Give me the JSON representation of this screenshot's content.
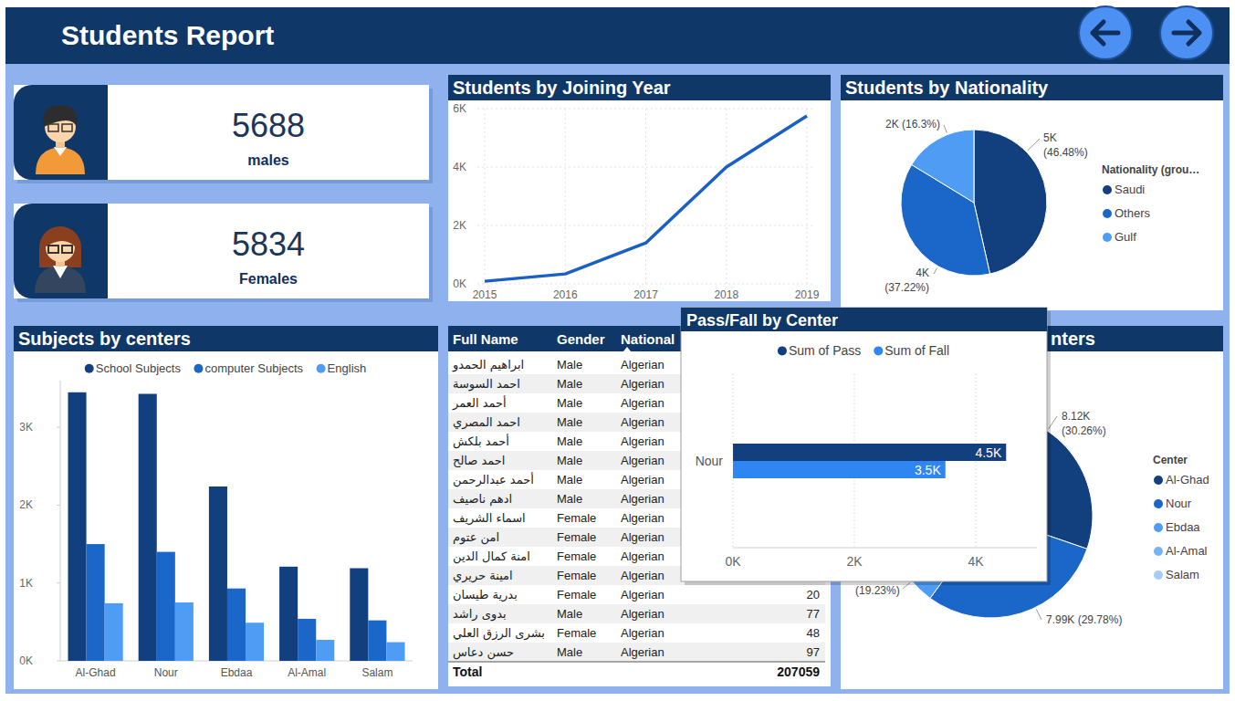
{
  "header": {
    "title": "Students Report"
  },
  "cards": [
    {
      "value": 5688,
      "label": "males"
    },
    {
      "value": 5834,
      "label": "Females"
    }
  ],
  "chart_data": [
    {
      "type": "line",
      "title": "Students by Joining Year",
      "x": [
        2015,
        2016,
        2017,
        2018,
        2019
      ],
      "values": [
        90,
        340,
        1400,
        4000,
        5750
      ],
      "color": "#1a5fc4",
      "xlim": [
        2015,
        2019
      ],
      "xticks": [
        2015,
        2016,
        2017,
        2018,
        2019
      ],
      "ylim": [
        0,
        6000
      ],
      "yticks": [
        {
          "value": 0,
          "label": "0K"
        },
        {
          "value": 2000,
          "label": "2K"
        },
        {
          "value": 4000,
          "label": "4K"
        },
        {
          "value": 6000,
          "label": "6K"
        }
      ],
      "grid": true
    },
    {
      "type": "pie",
      "title": "Students by Nationality",
      "legend_title": "Nationality (grou…",
      "categories": [
        "Saudi",
        "Others",
        "Gulf"
      ],
      "values": [
        46.48,
        37.22,
        16.3
      ],
      "value_labels": [
        "5K (46.48%)",
        "4K (37.22%)",
        "2K (16.3%)"
      ],
      "colors": [
        "#12407f",
        "#1a66c9",
        "#4f9cf5"
      ],
      "legend": "right",
      "data_labels": true
    },
    {
      "type": "bar",
      "title": "Subjects by centers",
      "categories": [
        "Al-Ghad",
        "Nour",
        "Ebdaa",
        "Al-Amal",
        "Salam"
      ],
      "series": [
        {
          "name": "School Subjects",
          "color": "#12407f",
          "values": [
            3450,
            3430,
            2240,
            1210,
            1190
          ]
        },
        {
          "name": "computer Subjects",
          "color": "#1a66c9",
          "values": [
            1500,
            1400,
            930,
            540,
            520
          ]
        },
        {
          "name": "English",
          "color": "#4f9cf5",
          "values": [
            740,
            750,
            490,
            270,
            240
          ]
        }
      ],
      "ylim": [
        0,
        3600
      ],
      "yticks": [
        {
          "value": 0,
          "label": "0K"
        },
        {
          "value": 1000,
          "label": "1K"
        },
        {
          "value": 2000,
          "label": "2K"
        },
        {
          "value": 3000,
          "label": "3K"
        }
      ],
      "legend": "top",
      "grid": false
    },
    {
      "type": "bar",
      "orientation": "horizontal",
      "title": "Pass/Fall by Center",
      "categories": [
        "Nour"
      ],
      "series": [
        {
          "name": "Sum of Pass",
          "color": "#12407f",
          "values": [
            4500
          ],
          "value_labels": [
            "4.5K"
          ]
        },
        {
          "name": "Sum of Fall",
          "color": "#2f86f2",
          "values": [
            3500
          ],
          "value_labels": [
            "3.5K"
          ]
        }
      ],
      "xlim": [
        0,
        5000
      ],
      "xticks": [
        {
          "value": 0,
          "label": "0K"
        },
        {
          "value": 2000,
          "label": "2K"
        },
        {
          "value": 4000,
          "label": "4K"
        }
      ],
      "grid": true,
      "legend": "top",
      "data_labels": true
    },
    {
      "type": "donut",
      "title": "nters",
      "legend_title": "Center",
      "categories": [
        "Al-Ghad",
        "Nour",
        "Ebdaa",
        "Al-Amal",
        "Salam"
      ],
      "values": [
        30.26,
        29.78,
        19.23,
        10.6,
        10.13
      ],
      "value_labels": [
        "8.12K (30.26%)",
        "7.99K (29.78%)",
        "(19.23%)",
        null,
        null
      ],
      "colors": [
        "#12407f",
        "#1a66c9",
        "#4f9cf5",
        "#75b3f7",
        "#a6cdf9"
      ],
      "legend": "right",
      "data_labels": true
    }
  ],
  "table": {
    "columns": [
      "Full Name",
      "Gender",
      "National"
    ],
    "rows": [
      [
        "ابراهيم الحمدو",
        "Male",
        "Algerian"
      ],
      [
        "احمد السوسة",
        "Male",
        "Algerian"
      ],
      [
        "أحمد العمر",
        "Male",
        "Algerian"
      ],
      [
        "احمد المصري",
        "Male",
        "Algerian"
      ],
      [
        "أحمد بلكش",
        "Male",
        "Algerian"
      ],
      [
        "احمد صالح",
        "Male",
        "Algerian"
      ],
      [
        "أحمد عبدالرحمن",
        "Male",
        "Algerian"
      ],
      [
        "ادهم ناصيف",
        "Male",
        "Algerian"
      ],
      [
        "اسماء الشريف",
        "Female",
        "Algerian"
      ],
      [
        "امن عتوم",
        "Female",
        "Algerian"
      ],
      [
        "امنة كمال الدين",
        "Female",
        "Algerian"
      ],
      [
        "امينة حريري",
        "Female",
        "Algerian"
      ],
      [
        "بدرية طيسان",
        "Female",
        "Algerian",
        20
      ],
      [
        "بدوى راشد",
        "Male",
        "Algerian",
        77
      ],
      [
        "بشرى الرزق العلي",
        "Female",
        "Algerian",
        48
      ],
      [
        "حسن دعاس",
        "Male",
        "Algerian",
        97
      ]
    ],
    "total": {
      "label": "Total",
      "value": 207059
    }
  }
}
